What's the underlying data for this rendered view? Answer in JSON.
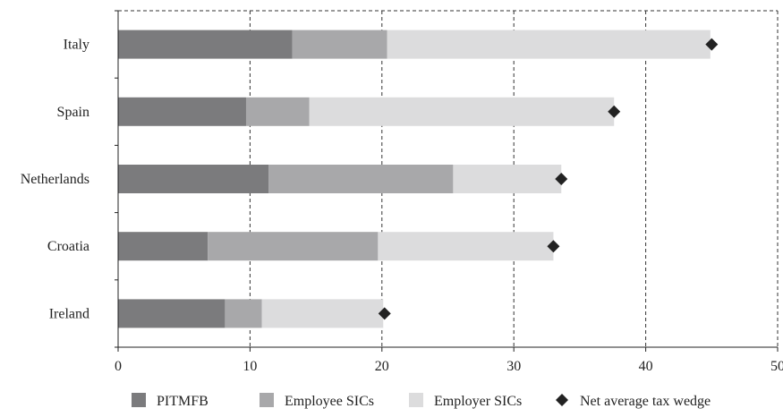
{
  "chart_data": {
    "type": "bar",
    "orientation": "horizontal",
    "stacked": true,
    "title": "",
    "xlabel": "",
    "ylabel": "",
    "categories": [
      "Italy",
      "Spain",
      "Netherlands",
      "Croatia",
      "Ireland"
    ],
    "series": [
      {
        "name": "PITMFB",
        "color": "#7b7b7d",
        "values": [
          13.2,
          9.7,
          11.4,
          6.8,
          8.1
        ]
      },
      {
        "name": "Employee SICs",
        "color": "#a8a8aa",
        "values": [
          7.2,
          4.8,
          14.0,
          12.9,
          2.8
        ]
      },
      {
        "name": "Employer SICs",
        "color": "#dcdcdd",
        "values": [
          24.5,
          23.1,
          8.2,
          13.3,
          9.2
        ]
      }
    ],
    "markers": {
      "name": "Net average tax wedge",
      "color": "#222222",
      "shape": "diamond",
      "values": [
        45.0,
        37.6,
        33.6,
        33.0,
        20.2
      ]
    },
    "xlim": [
      0,
      50
    ],
    "xticks": [
      0,
      10,
      20,
      30,
      40,
      50
    ],
    "grid": true,
    "legend": "bottom"
  }
}
